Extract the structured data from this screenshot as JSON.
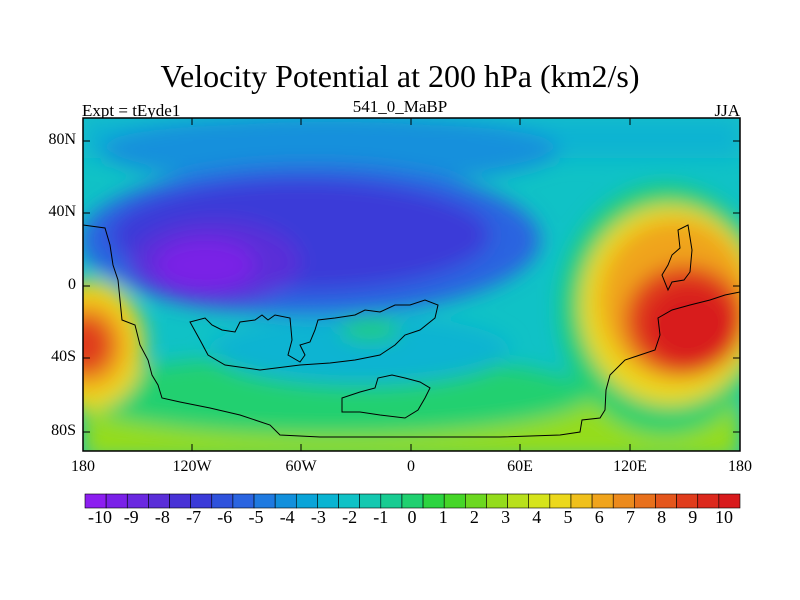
{
  "title": "Velocity Potential at 200 hPa (km2/s)",
  "left_subtitle": "Expt = tEyde1",
  "center_subtitle": "541_0_MaBP",
  "right_subtitle": "JJA",
  "lat_labels": [
    "80N",
    "40N",
    "0",
    "40S",
    "80S"
  ],
  "lon_labels": [
    "180",
    "120W",
    "60W",
    "0",
    "60E",
    "120E",
    "180"
  ],
  "colorbar": {
    "labels": [
      "-10",
      "-9",
      "-8",
      "-7",
      "-6",
      "-5",
      "-4",
      "-3",
      "-2",
      "-1",
      "0",
      "1",
      "2",
      "3",
      "4",
      "5",
      "6",
      "7",
      "8",
      "9",
      "10"
    ],
    "colors": [
      "#8c1ef0",
      "#7a20e8",
      "#6a28e0",
      "#5a2ed8",
      "#4832d6",
      "#3a3ad8",
      "#2f52dc",
      "#2a64e0",
      "#1f7ae0",
      "#1290dc",
      "#0aa4d8",
      "#0ab4d2",
      "#10c2c6",
      "#14c8b0",
      "#18cc92",
      "#20d070",
      "#2cd440",
      "#46d628",
      "#6cd820",
      "#94dc1c",
      "#b8e01c",
      "#d6e41c",
      "#ecd81c",
      "#f0c01c",
      "#f0a41c",
      "#ec8a1c",
      "#e8701c",
      "#e4561c",
      "#e03c1c",
      "#dc281c",
      "#d81a1c"
    ]
  },
  "map_colors": {
    "deep_purple": "#7a22e6",
    "blue": "#3a3ad8",
    "mid_blue": "#2a64e0",
    "cyan": "#0aa4d8",
    "teal": "#10c2c6",
    "green": "#20d070",
    "lime": "#94dc1c",
    "yellow": "#ecd81c",
    "orange": "#f0a41c",
    "red": "#e03c1c",
    "deep_red": "#d81a1c"
  }
}
